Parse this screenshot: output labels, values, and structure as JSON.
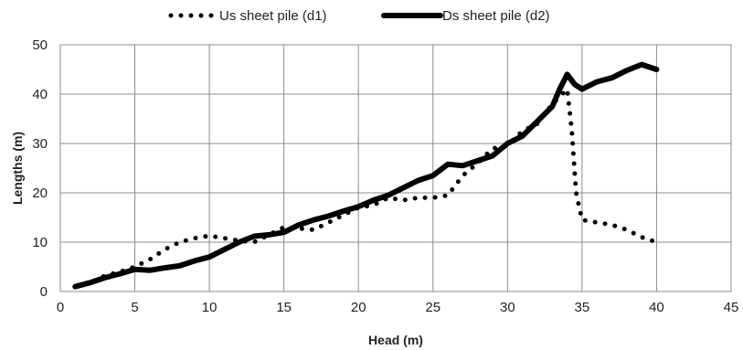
{
  "chart_data": {
    "type": "line",
    "title": "",
    "xlabel": "Head (m)",
    "ylabel": "Lengths (m)",
    "xlim": [
      0,
      45
    ],
    "ylim": [
      0,
      50
    ],
    "xticks": [
      0,
      5,
      10,
      15,
      20,
      25,
      30,
      35,
      40,
      45
    ],
    "yticks": [
      0,
      10,
      20,
      30,
      40,
      50
    ],
    "grid": true,
    "legend_position": "top",
    "series": [
      {
        "name": "Us sheet pile (d1)",
        "style": "dotted",
        "color": "#000000",
        "x": [
          1,
          2,
          3,
          4,
          5,
          6,
          7,
          8,
          9,
          10,
          11,
          12,
          13,
          14,
          15,
          16,
          17,
          18,
          19,
          20,
          21,
          22,
          23,
          24,
          25,
          26,
          27,
          28,
          29,
          30,
          31,
          32,
          33,
          34,
          34.3,
          34.6,
          35,
          36,
          37,
          38,
          39,
          40
        ],
        "y": [
          1,
          1.8,
          3.2,
          4,
          5,
          6.5,
          8.5,
          10,
          10.8,
          11.3,
          10.8,
          10.3,
          10,
          11.5,
          13,
          12.8,
          12.5,
          14,
          15.5,
          17,
          17.5,
          19,
          18.5,
          19,
          19,
          19.5,
          23.5,
          26,
          29,
          29.5,
          32.5,
          34,
          38,
          41,
          33,
          20,
          14.5,
          14,
          13.5,
          12.5,
          11,
          10
        ]
      },
      {
        "name": "Ds sheet pile (d2)",
        "style": "solid",
        "color": "#000000",
        "x": [
          1,
          2,
          3,
          4,
          5,
          6,
          7,
          8,
          9,
          10,
          11,
          12,
          13,
          14,
          15,
          16,
          17,
          18,
          19,
          20,
          21,
          22,
          23,
          24,
          25,
          26,
          27,
          28,
          29,
          30,
          31,
          32,
          33,
          33.5,
          34,
          34.5,
          35,
          36,
          37,
          38,
          39,
          40
        ],
        "y": [
          1,
          1.8,
          2.8,
          3.6,
          4.5,
          4.3,
          4.8,
          5.2,
          6.2,
          7,
          8.5,
          10,
          11.2,
          11.5,
          12,
          13.5,
          14.5,
          15.3,
          16.3,
          17.2,
          18.5,
          19.5,
          21,
          22.5,
          23.5,
          25.8,
          25.5,
          26.5,
          27.5,
          30,
          31.5,
          34.5,
          37.5,
          41,
          44,
          42,
          41,
          42.5,
          43.3,
          44.8,
          46,
          45
        ]
      }
    ]
  }
}
